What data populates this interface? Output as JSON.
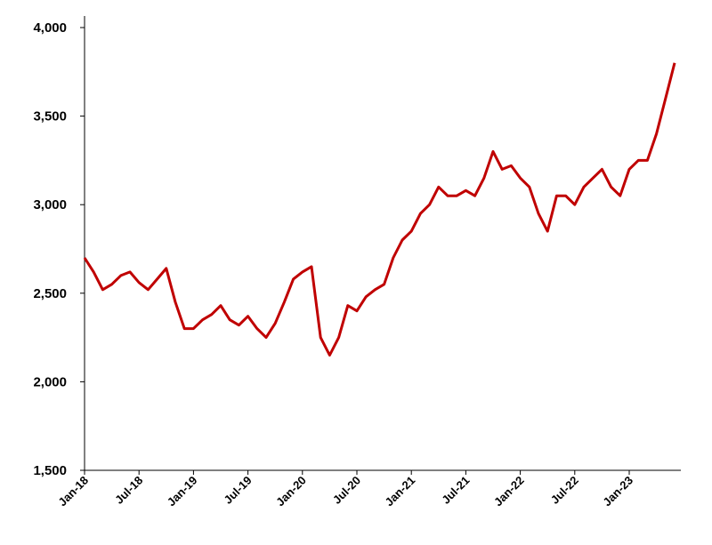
{
  "chart_data": {
    "type": "line",
    "categories": [
      "Jan-18",
      null,
      null,
      null,
      null,
      null,
      "Jul-18",
      null,
      null,
      null,
      null,
      null,
      "Jan-19",
      null,
      null,
      null,
      null,
      null,
      "Jul-19",
      null,
      null,
      null,
      null,
      null,
      "Jan-20",
      null,
      null,
      null,
      null,
      null,
      "Jul-20",
      null,
      null,
      null,
      null,
      null,
      "Jan-21",
      null,
      null,
      null,
      null,
      null,
      "Jul-21",
      null,
      null,
      null,
      null,
      null,
      "Jan-22",
      null,
      null,
      null,
      null,
      null,
      "Jul-22",
      null,
      null,
      null,
      null,
      null,
      "Jan-23",
      null,
      null,
      null,
      null,
      null
    ],
    "series": [
      {
        "color": "#c00000",
        "values": [
          2700,
          2620,
          2520,
          2550,
          2600,
          2620,
          2560,
          2520,
          2580,
          2640,
          2450,
          2300,
          2300,
          2350,
          2380,
          2430,
          2350,
          2320,
          2370,
          2300,
          2250,
          2330,
          2450,
          2580,
          2620,
          2650,
          2250,
          2150,
          2250,
          2430,
          2400,
          2480,
          2520,
          2550,
          2700,
          2800,
          2850,
          2950,
          3000,
          3100,
          3050,
          3050,
          3080,
          3050,
          3150,
          3300,
          3200,
          3220,
          3150,
          3100,
          2950,
          2850,
          3050,
          3050,
          3000,
          3100,
          3150,
          3200,
          3100,
          3050,
          3200,
          3250,
          3250,
          3400,
          3600,
          3800
        ]
      }
    ],
    "ylim": [
      1500,
      4000
    ],
    "yticks": [
      {
        "value": 1500,
        "label": "1,500"
      },
      {
        "value": 2000,
        "label": "2,000"
      },
      {
        "value": 2500,
        "label": "2,500"
      },
      {
        "value": 3000,
        "label": "3,000"
      },
      {
        "value": 3500,
        "label": "3,500"
      },
      {
        "value": 4000,
        "label": "4,000"
      }
    ],
    "grid": false
  }
}
